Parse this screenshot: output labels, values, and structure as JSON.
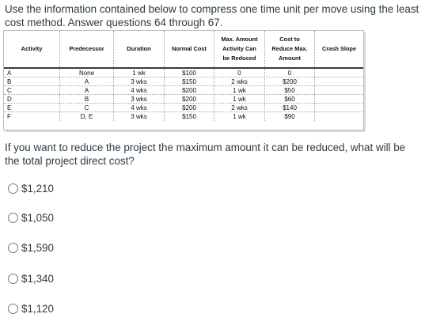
{
  "intro": "Use the information contained below to compress one time unit per move using the least cost method.  Answer questions 64 through 67.",
  "table": {
    "headers": {
      "activity": "Activity",
      "predecessor": "Predecessor",
      "duration": "Duration",
      "normal_cost": "Normal Cost",
      "max_reduce": [
        "Max. Amount",
        "Activity Can",
        "be Reduced"
      ],
      "cost_to_reduce": [
        "Cost to",
        "Reduce Max.",
        "Amount"
      ],
      "crash_slope": "Crash Slope"
    },
    "rows": [
      {
        "activity": "A",
        "predecessor": "None",
        "duration": "1 wk",
        "normal_cost": "$100",
        "max_reduce": "0",
        "cost_to_reduce": "0",
        "crash_slope": ""
      },
      {
        "activity": "B",
        "predecessor": "A",
        "duration": "3 wks",
        "normal_cost": "$150",
        "max_reduce": "2 wks",
        "cost_to_reduce": "$200",
        "crash_slope": ""
      },
      {
        "activity": "C",
        "predecessor": "A",
        "duration": "4 wks",
        "normal_cost": "$200",
        "max_reduce": "1 wk",
        "cost_to_reduce": "$50",
        "crash_slope": ""
      },
      {
        "activity": "D",
        "predecessor": "B",
        "duration": "3 wks",
        "normal_cost": "$200",
        "max_reduce": "1 wk",
        "cost_to_reduce": "$60",
        "crash_slope": ""
      },
      {
        "activity": "E",
        "predecessor": "C",
        "duration": "4 wks",
        "normal_cost": "$200",
        "max_reduce": "2 wks",
        "cost_to_reduce": "$140",
        "crash_slope": ""
      },
      {
        "activity": "F",
        "predecessor": "D, E",
        "duration": "3 wks",
        "normal_cost": "$150",
        "max_reduce": "1 wk",
        "cost_to_reduce": "$90",
        "crash_slope": ""
      }
    ]
  },
  "question": "If you want to reduce the project the maximum amount it can be reduced, what will be the total project direct cost?",
  "options": [
    "$1,210",
    "$1,050",
    "$1,590",
    "$1,340",
    "$1,120"
  ]
}
